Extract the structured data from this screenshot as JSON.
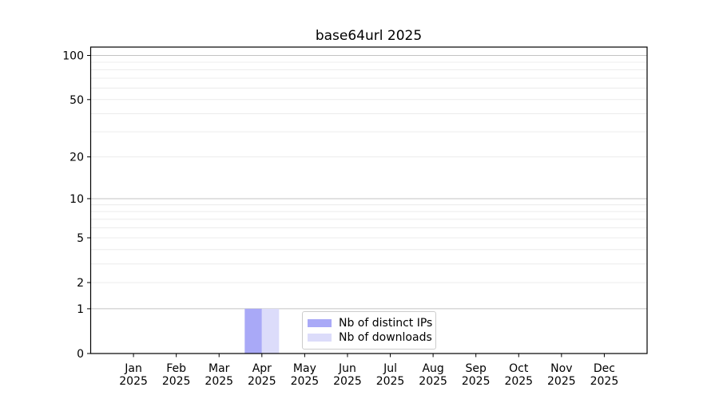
{
  "chart_data": {
    "type": "bar",
    "title": "base64url 2025",
    "year": "2025",
    "months": [
      "Jan",
      "Feb",
      "Mar",
      "Apr",
      "May",
      "Jun",
      "Jul",
      "Aug",
      "Sep",
      "Oct",
      "Nov",
      "Dec"
    ],
    "categories": [
      "Jan 2025",
      "Feb 2025",
      "Mar 2025",
      "Apr 2025",
      "May 2025",
      "Jun 2025",
      "Jul 2025",
      "Aug 2025",
      "Sep 2025",
      "Oct 2025",
      "Nov 2025",
      "Dec 2025"
    ],
    "series": [
      {
        "name": "Nb of distinct IPs",
        "color": "#a9a9f7",
        "values": [
          0,
          0,
          0,
          1,
          0,
          0,
          0,
          0,
          0,
          0,
          0,
          0
        ]
      },
      {
        "name": "Nb of downloads",
        "color": "#dcdcfa",
        "values": [
          0,
          0,
          0,
          1,
          0,
          0,
          0,
          0,
          0,
          0,
          0,
          0
        ]
      }
    ],
    "xlabel": "",
    "ylabel": "",
    "y_scale": "log10(1+v)",
    "ylim": [
      0,
      114
    ],
    "y_tick_values": [
      0,
      1,
      2,
      5,
      10,
      20,
      50,
      100
    ],
    "y_major_grid": [
      1,
      10,
      100
    ],
    "y_minor_grid": [
      2,
      3,
      4,
      5,
      6,
      7,
      8,
      9,
      20,
      30,
      40,
      50,
      60,
      70,
      80,
      90
    ],
    "grid": "horizontal",
    "legend": {
      "position": "lower center"
    },
    "colors": {
      "background": "#ffffff",
      "axis": "#000000",
      "text": "#000000",
      "major_grid": "#c3c3c3",
      "minor_grid": "#ececec",
      "legend_border": "#cccccc"
    }
  }
}
